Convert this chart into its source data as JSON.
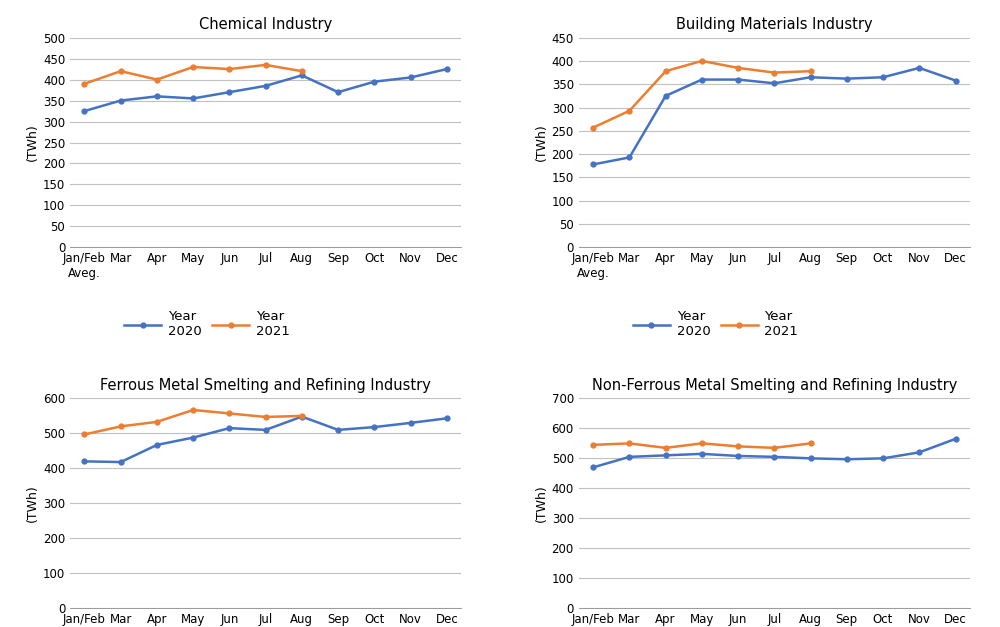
{
  "x_labels": [
    "Jan/Feb\nAveg.",
    "Mar",
    "Apr",
    "May",
    "Jun",
    "Jul",
    "Aug",
    "Sep",
    "Oct",
    "Nov",
    "Dec"
  ],
  "charts": [
    {
      "title": "Chemical Industry",
      "y_max": 500,
      "y_step": 50,
      "year2020": [
        325,
        350,
        360,
        355,
        370,
        385,
        410,
        370,
        395,
        405,
        425
      ],
      "year2021": [
        390,
        420,
        400,
        430,
        425,
        435,
        420,
        null,
        null,
        null,
        null
      ]
    },
    {
      "title": "Building Materials Industry",
      "y_max": 450,
      "y_step": 50,
      "year2020": [
        178,
        193,
        325,
        360,
        360,
        352,
        365,
        362,
        365,
        385,
        358
      ],
      "year2021": [
        257,
        293,
        378,
        400,
        385,
        375,
        378,
        null,
        null,
        null,
        null
      ]
    },
    {
      "title": "Ferrous Metal Smelting and Refining Industry",
      "y_max": 600,
      "y_step": 100,
      "year2020": [
        420,
        418,
        467,
        488,
        515,
        510,
        548,
        510,
        518,
        530,
        543
      ],
      "year2021": [
        497,
        520,
        533,
        567,
        557,
        547,
        550,
        null,
        null,
        null,
        null
      ]
    },
    {
      "title": "Non-Ferrous Metal Smelting and Refining Industry",
      "y_max": 700,
      "y_step": 100,
      "year2020": [
        470,
        505,
        510,
        515,
        508,
        505,
        500,
        497,
        500,
        520,
        565
      ],
      "year2021": [
        545,
        550,
        535,
        550,
        540,
        535,
        550,
        null,
        null,
        null,
        null
      ]
    }
  ],
  "color_2020": "#4472C4",
  "color_2021": "#ED7D31",
  "legend_label_2020": "Year\n2020",
  "legend_label_2021": "Year\n2021",
  "ylabel": "(TWh)",
  "background_color": "#FFFFFF",
  "grid_color": "#C0C0C0",
  "title_fontsize": 10.5,
  "tick_fontsize": 8.5,
  "ylabel_fontsize": 9,
  "legend_fontsize": 9.5
}
